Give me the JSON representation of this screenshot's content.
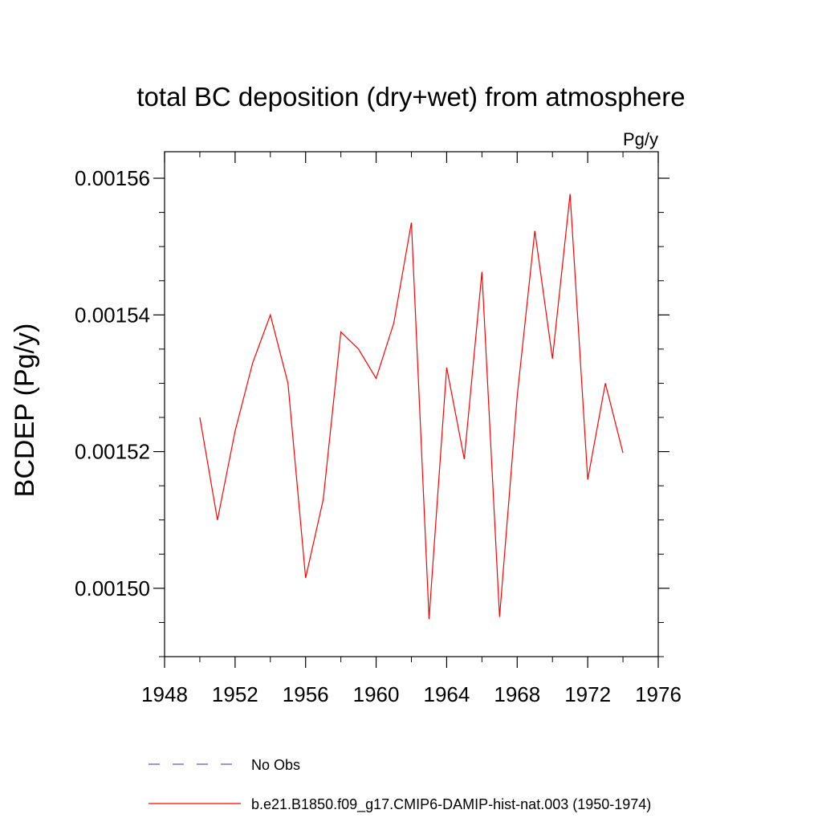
{
  "chart_data": {
    "type": "line",
    "title": "total BC deposition (dry+wet) from atmosphere",
    "units": "Pg/y",
    "ylabel": "BCDEP  (Pg/y)",
    "xlabel": "",
    "xlim": [
      1948,
      1976
    ],
    "ylim": [
      0.00149,
      0.001562
    ],
    "x_ticks": [
      1948,
      1952,
      1956,
      1960,
      1964,
      1968,
      1972,
      1976
    ],
    "x_tick_labels": [
      "1948",
      "1952",
      "1956",
      "1960",
      "1964",
      "1968",
      "1972",
      "1976"
    ],
    "y_ticks": [
      0.0015,
      0.00152,
      0.00154,
      0.00156
    ],
    "y_tick_labels": [
      "0.00150",
      "0.00152",
      "0.00154",
      "0.00156"
    ],
    "grid": false,
    "legend_position": "bottom",
    "series": [
      {
        "name": "No Obs",
        "color": "#5a5acd",
        "style": "dashed",
        "x": [],
        "y": []
      },
      {
        "name": "b.e21.B1850.f09_g17.CMIP6-DAMIP-hist-nat.003 (1950-1974)",
        "color": "#ff0000",
        "style": "solid",
        "x": [
          1950,
          1951,
          1952,
          1953,
          1954,
          1955,
          1956,
          1957,
          1958,
          1959,
          1960,
          1961,
          1962,
          1963,
          1964,
          1965,
          1966,
          1967,
          1968,
          1969,
          1970,
          1971,
          1972,
          1973,
          1974
        ],
        "y": [
          0.001525,
          0.00151,
          0.001523,
          0.001533,
          0.00154,
          0.00153,
          0.0015015,
          0.001513,
          0.0015375,
          0.001535,
          0.0015307,
          0.0015388,
          0.0015535,
          0.0014955,
          0.0015323,
          0.0015189,
          0.0015463,
          0.0014958,
          0.0015281,
          0.0015523,
          0.0015336,
          0.0015577,
          0.0015159,
          0.00153,
          0.0015198
        ]
      }
    ]
  }
}
